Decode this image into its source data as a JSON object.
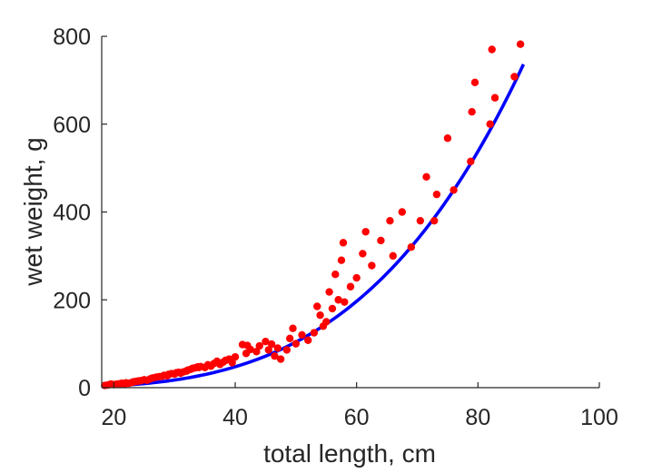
{
  "chart_data": {
    "type": "scatter",
    "xlabel": "total length, cm",
    "ylabel": "wet weight, g",
    "xlim": [
      18,
      100
    ],
    "ylim": [
      0,
      800
    ],
    "xticks": [
      20,
      40,
      60,
      80,
      100
    ],
    "yticks": [
      0,
      200,
      400,
      600,
      800
    ],
    "grid": false,
    "colors": {
      "points": "#ff0000",
      "fit": "#0000ff",
      "axes": "#262626"
    },
    "series": [
      {
        "kind": "scatter",
        "x": [
          18.5,
          19,
          19.5,
          20,
          20.5,
          21,
          21.3,
          21.8,
          22,
          22.5,
          23,
          23.2,
          23.6,
          24,
          24.5,
          25,
          25.5,
          26,
          26.4,
          27,
          27.5,
          28,
          28.3,
          28.8,
          29,
          29.5,
          30,
          30.3,
          30.7,
          31,
          31.5,
          32,
          32.2,
          32.7,
          33,
          33.4,
          33.8,
          34,
          34.3,
          35,
          35.5,
          36,
          36.5,
          37,
          37.5,
          38,
          38.4,
          39,
          39.5,
          40,
          41.2,
          41.8,
          42,
          42.5,
          43.5,
          44,
          45,
          45.5,
          46,
          46.5,
          47,
          47.5,
          48.5,
          49,
          49.5,
          50,
          51,
          52,
          53,
          53.5,
          54,
          54.5,
          55,
          55.5,
          56,
          56.5,
          57,
          57.5,
          57.8,
          58,
          59,
          60,
          61,
          61.5,
          62.5,
          64,
          65.5,
          66,
          67.5,
          69,
          70.5,
          71.5,
          72.8,
          73.2,
          75,
          76,
          78.8,
          79,
          79.5,
          82,
          82.3,
          82.8,
          86,
          87
        ],
        "y": [
          5,
          6,
          8,
          7,
          8,
          9,
          10,
          8,
          11,
          10,
          12,
          13,
          14,
          15,
          16,
          18,
          17,
          20,
          22,
          24,
          25,
          26,
          28,
          27,
          30,
          32,
          31,
          34,
          35,
          33,
          36,
          38,
          40,
          42,
          44,
          45,
          47,
          46,
          48,
          46,
          52,
          49,
          55,
          60,
          53,
          58,
          62,
          65,
          57,
          70,
          98,
          78,
          96,
          87,
          82,
          95,
          105,
          86,
          99,
          72,
          90,
          65,
          86,
          112,
          135,
          100,
          120,
          108,
          125,
          185,
          165,
          140,
          150,
          218,
          180,
          258,
          200,
          290,
          330,
          195,
          230,
          250,
          305,
          355,
          278,
          335,
          380,
          300,
          400,
          320,
          380,
          480,
          380,
          440,
          568,
          450,
          515,
          628,
          695,
          600,
          770,
          660,
          708,
          782
        ]
      },
      {
        "kind": "fit-line",
        "model": "power",
        "coefficient": 0.0001175,
        "exponent": 3.5,
        "x_range": [
          18.5,
          87.5
        ]
      }
    ]
  }
}
